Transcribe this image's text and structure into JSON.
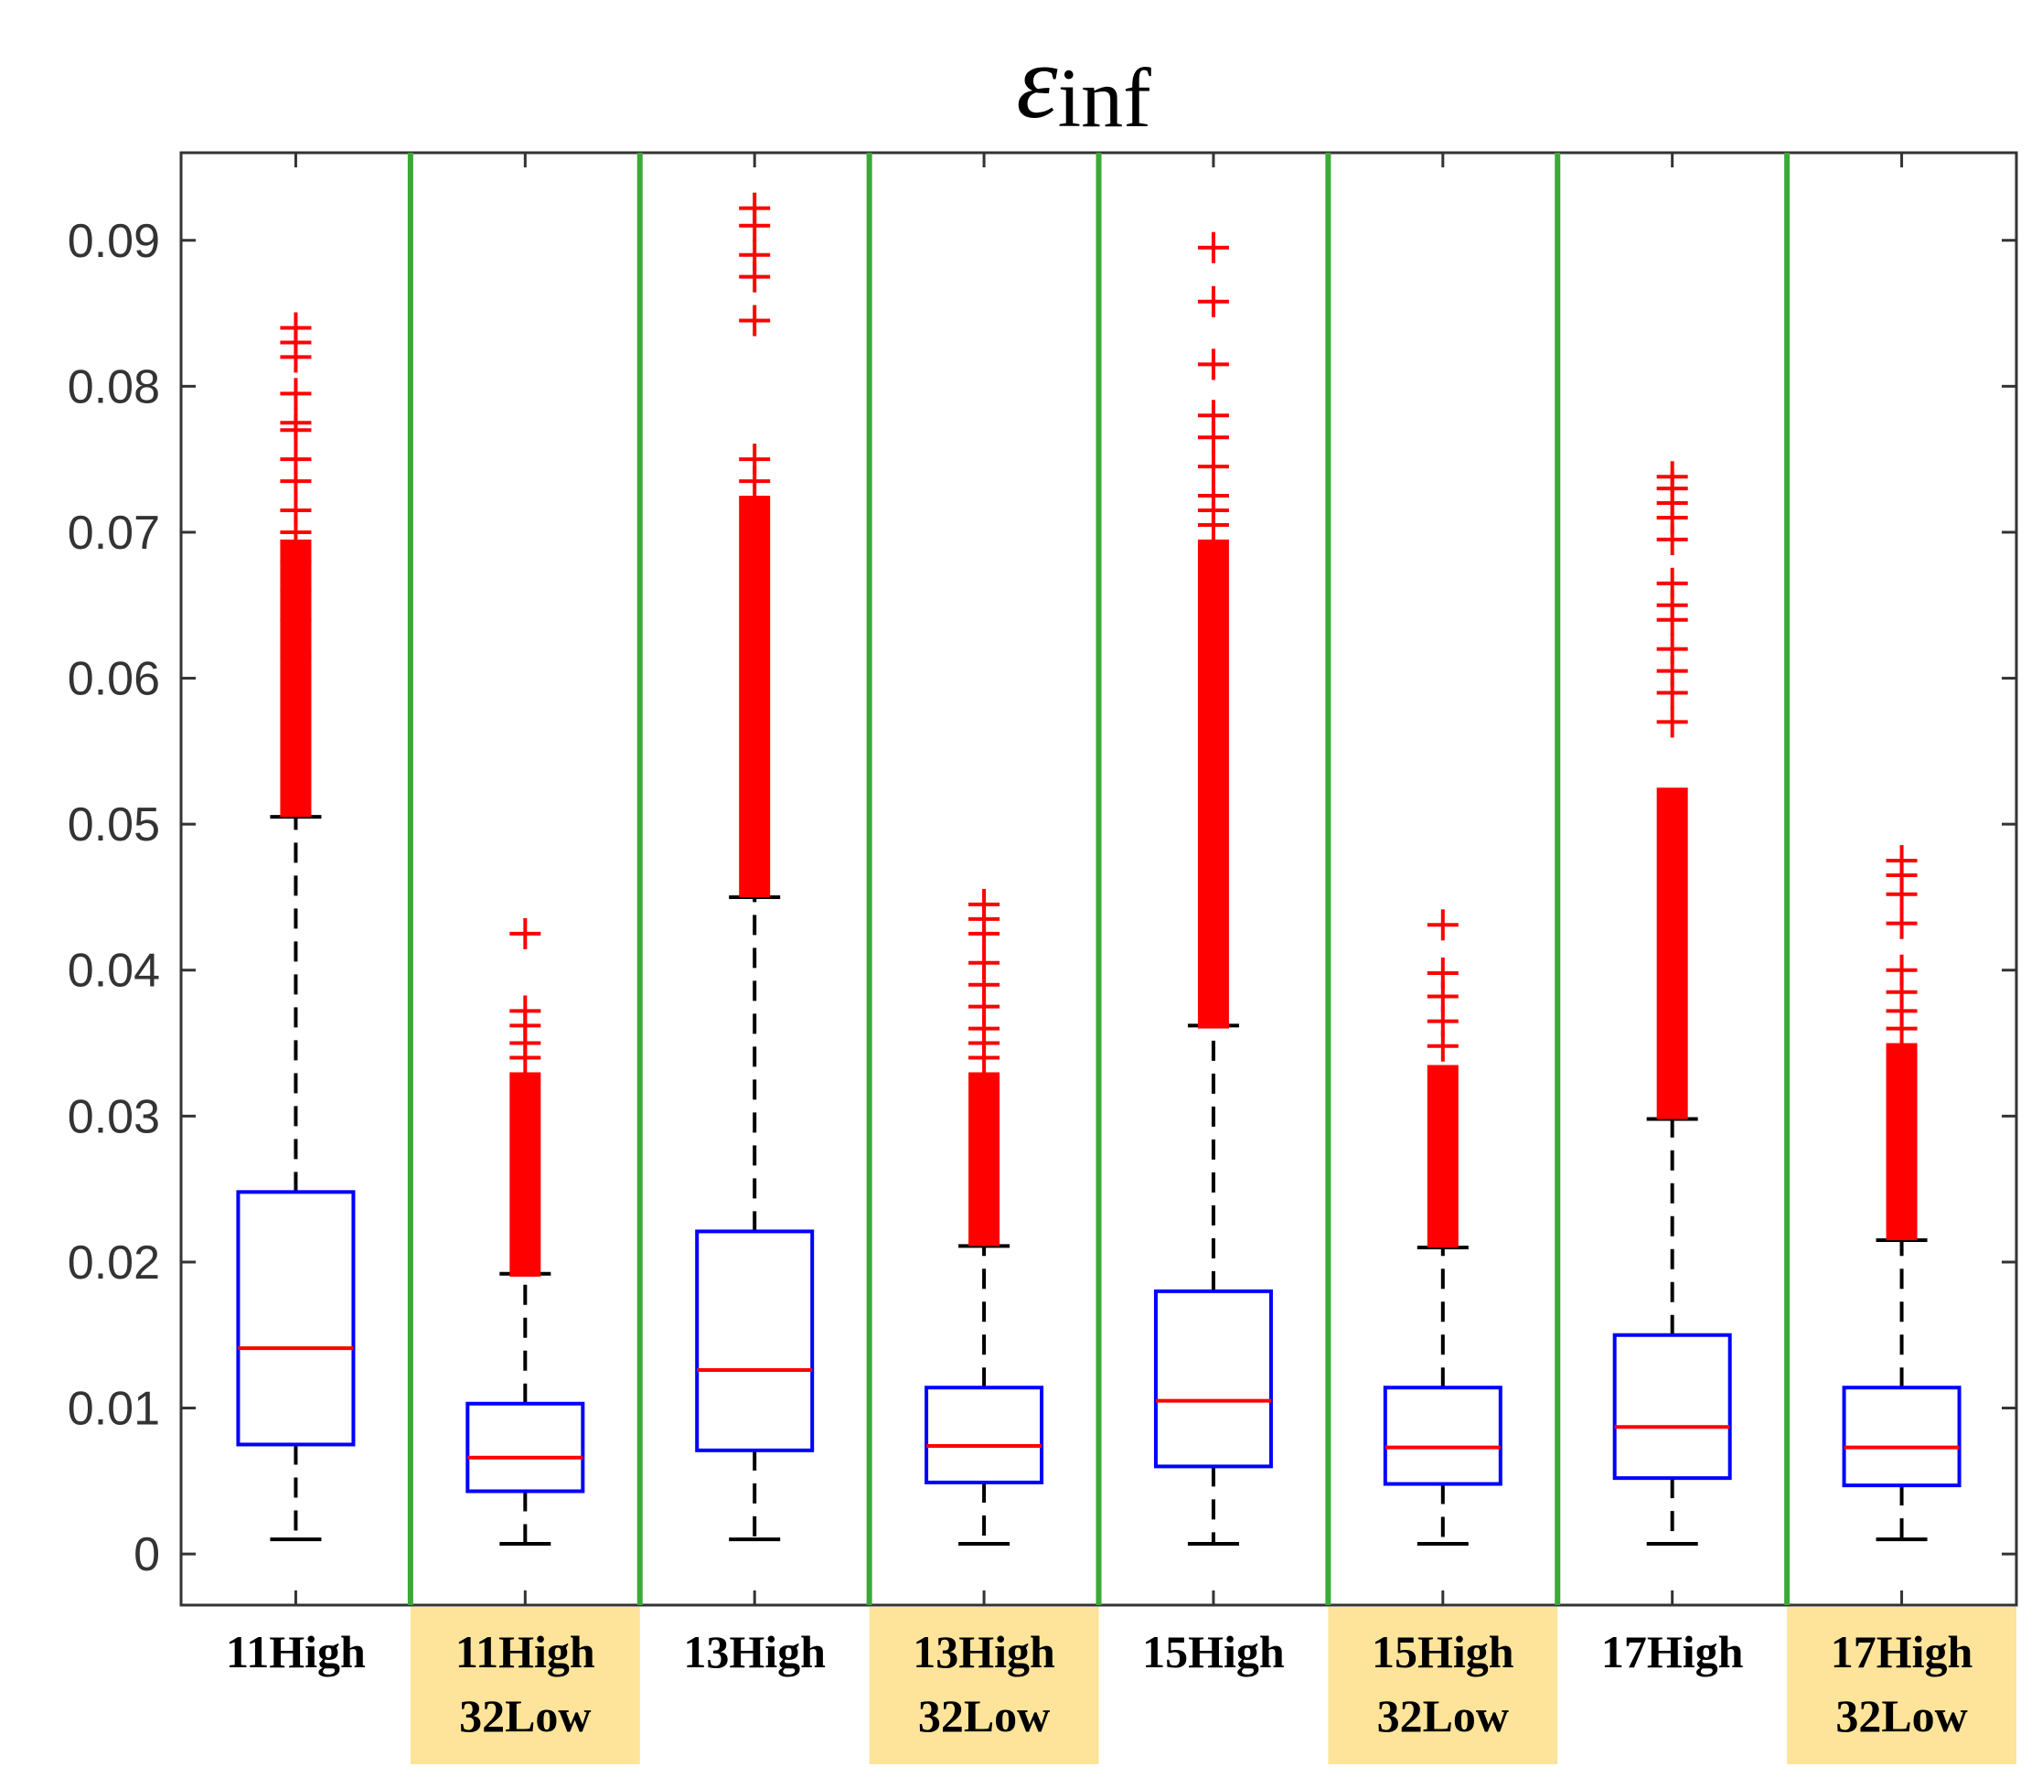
{
  "chart_data": {
    "type": "box",
    "title": "εinf",
    "title_symbol": "ε",
    "title_subscript": "inf",
    "xlabel": "",
    "ylabel": "",
    "ylim": [
      -0.0035,
      0.096
    ],
    "yticks": [
      0,
      0.01,
      0.02,
      0.03,
      0.04,
      0.05,
      0.06,
      0.07,
      0.08,
      0.09
    ],
    "ytick_labels": [
      "0",
      "0.01",
      "0.02",
      "0.03",
      "0.04",
      "0.05",
      "0.06",
      "0.07",
      "0.08",
      "0.09"
    ],
    "colors": {
      "box": "#0000ff",
      "median": "#ff0000",
      "outlier": "#ff0000",
      "whisker": "#000000",
      "separator": "#3aa935",
      "highlight": "#fde49a"
    },
    "categories": [
      {
        "line1": "11High",
        "line2": "",
        "highlight": false,
        "q1": 0.0075,
        "median": 0.0141,
        "q3": 0.0248,
        "whisker_low": 0.001,
        "whisker_high": 0.0505,
        "outliers": [
          0.084,
          0.083,
          0.082,
          0.0795,
          0.0775,
          0.077,
          0.075,
          0.0735,
          0.0715,
          0.07,
          0.068,
          0.066,
          0.064,
          0.0615
        ]
      },
      {
        "line1": "11High",
        "line2": "32Low",
        "highlight": true,
        "q1": 0.0043,
        "median": 0.0066,
        "q3": 0.0103,
        "whisker_low": 0.0007,
        "whisker_high": 0.0192,
        "outliers": [
          0.0425,
          0.0372,
          0.0362,
          0.035,
          0.034
        ]
      },
      {
        "line1": "13High",
        "line2": "",
        "highlight": false,
        "q1": 0.0071,
        "median": 0.0126,
        "q3": 0.0221,
        "whisker_low": 0.001,
        "whisker_high": 0.045,
        "outliers": [
          0.0922,
          0.091,
          0.089,
          0.0875,
          0.0845,
          0.075,
          0.0735
        ]
      },
      {
        "line1": "13High",
        "line2": "32Low",
        "highlight": true,
        "q1": 0.0049,
        "median": 0.0074,
        "q3": 0.0114,
        "whisker_low": 0.0007,
        "whisker_high": 0.0211,
        "outliers": [
          0.0445,
          0.0435,
          0.0425,
          0.0405,
          0.039,
          0.0375,
          0.036,
          0.035,
          0.034
        ]
      },
      {
        "line1": "15High",
        "line2": "",
        "highlight": false,
        "q1": 0.006,
        "median": 0.0105,
        "q3": 0.018,
        "whisker_low": 0.0007,
        "whisker_high": 0.0362,
        "outliers": [
          0.0895,
          0.0858,
          0.0815,
          0.078,
          0.0765,
          0.0745,
          0.0725,
          0.0715,
          0.0705
        ]
      },
      {
        "line1": "15High",
        "line2": "32Low",
        "highlight": true,
        "q1": 0.0048,
        "median": 0.0073,
        "q3": 0.0114,
        "whisker_low": 0.0007,
        "whisker_high": 0.021,
        "outliers": [
          0.0431,
          0.0398,
          0.0382,
          0.0365,
          0.0348
        ]
      },
      {
        "line1": "17High",
        "line2": "",
        "highlight": false,
        "q1": 0.0052,
        "median": 0.0087,
        "q3": 0.015,
        "whisker_low": 0.0007,
        "whisker_high": 0.0298,
        "outliers": [
          0.0738,
          0.073,
          0.072,
          0.071,
          0.0695,
          0.0665,
          0.065,
          0.064,
          0.062,
          0.0605,
          0.059,
          0.057
        ]
      },
      {
        "line1": "17High",
        "line2": "32Low",
        "highlight": true,
        "q1": 0.0047,
        "median": 0.0073,
        "q3": 0.0114,
        "whisker_low": 0.001,
        "whisker_high": 0.0215,
        "outliers": [
          0.0475,
          0.0465,
          0.0452,
          0.0432,
          0.04,
          0.0385,
          0.0372,
          0.036
        ]
      }
    ],
    "dense_outlier_bands": [
      [
        0.0505,
        0.0695
      ],
      [
        0.019,
        0.033
      ],
      [
        0.045,
        0.0725
      ],
      [
        0.0211,
        0.033
      ],
      [
        0.036,
        0.0695
      ],
      [
        0.021,
        0.0335
      ],
      [
        0.0298,
        0.0525
      ],
      [
        0.0215,
        0.035
      ]
    ],
    "separators_after_category": [
      1,
      2,
      3,
      4,
      5,
      6,
      7
    ]
  }
}
